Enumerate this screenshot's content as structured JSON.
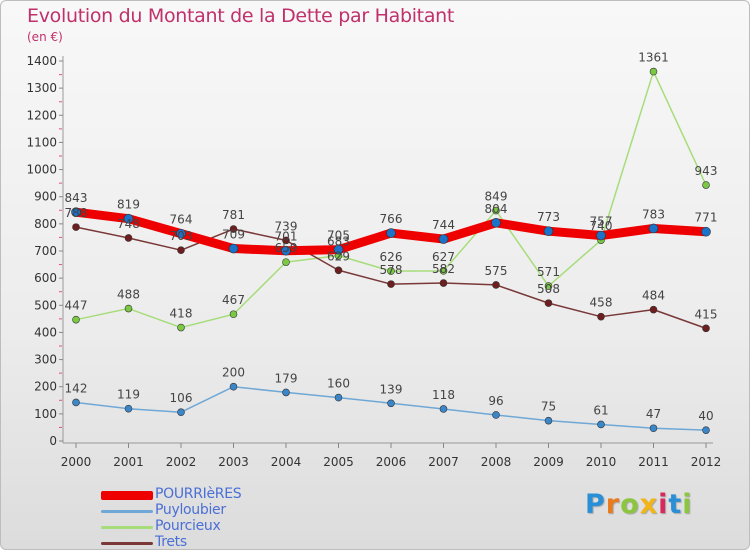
{
  "title": "Evolution du Montant de la Dette par Habitant",
  "unit": "(en €)",
  "logo": {
    "letters": [
      "P",
      "r",
      "o",
      "x",
      "i",
      "t",
      "i"
    ],
    "colors": [
      "#2a8fd6",
      "#e97a1d",
      "#8cc63f",
      "#f2b416",
      "#d62a5f",
      "#2a8fd6",
      "#8cc63f"
    ]
  },
  "chart_data": {
    "type": "line",
    "x": [
      "2000",
      "2001",
      "2002",
      "2003",
      "2004",
      "2005",
      "2006",
      "2007",
      "2008",
      "2009",
      "2010",
      "2011",
      "2012"
    ],
    "ylim": [
      0,
      1400
    ],
    "yticks": [
      0,
      100,
      200,
      300,
      400,
      500,
      600,
      700,
      800,
      900,
      1000,
      1100,
      1200,
      1300,
      1400
    ],
    "grid": false,
    "legend_position": "bottom-left",
    "series": [
      {
        "name": "POURRIèRES",
        "color": "#ee0000",
        "marker": "#1a72c9",
        "values": [
          843,
          819,
          764,
          709,
          701,
          705,
          766,
          744,
          804,
          773,
          757,
          783,
          771
        ]
      },
      {
        "name": "Puyloubier",
        "color": "#6fa8d6",
        "marker": "#3a86c8",
        "values": [
          142,
          119,
          106,
          200,
          179,
          160,
          139,
          118,
          96,
          75,
          61,
          47,
          40
        ]
      },
      {
        "name": "Pourcieux",
        "color": "#a6dd7a",
        "marker": "#7ac943",
        "values": [
          447,
          488,
          418,
          467,
          659,
          683,
          626,
          627,
          849,
          571,
          740,
          1361,
          943
        ]
      },
      {
        "name": "Trets",
        "color": "#7a3838",
        "marker": "#6e1e1e",
        "values": [
          788,
          748,
          703,
          781,
          739,
          629,
          578,
          582,
          575,
          508,
          458,
          484,
          415
        ]
      }
    ]
  }
}
